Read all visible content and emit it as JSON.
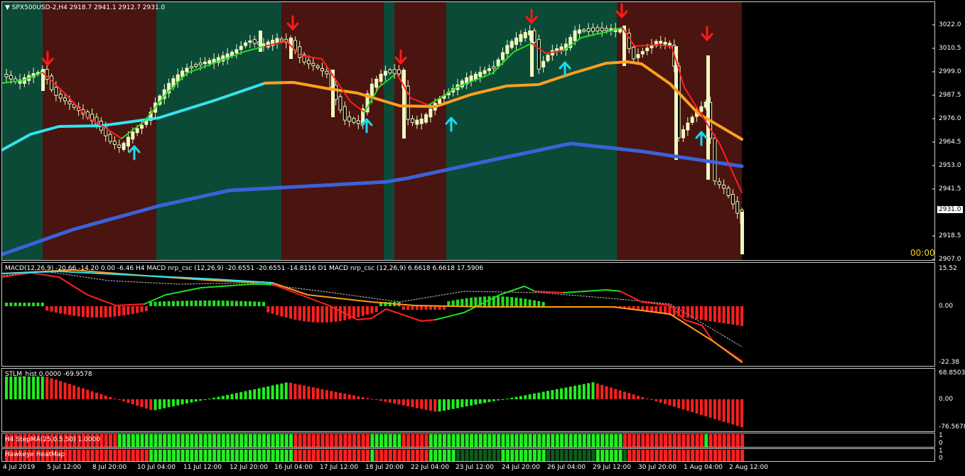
{
  "chart_header": {
    "symbol": "SPX500USD-2,H4",
    "ohlc": "2918.7 2941.1 2912.7 2931.0"
  },
  "main_scale": [
    "3022.0",
    "3010.5",
    "2999.0",
    "2987.5",
    "2976.0",
    "2964.5",
    "2953.0",
    "2941.5",
    "2918.5",
    "2907.0"
  ],
  "current_price": "2931.0",
  "countdown": "00:00",
  "macd": {
    "label": "MACD(12,26,9) -20.66 -14.20 0.00 -6.46  H4 MACD nrp_csc (12,26,9) -20.6551 -20.6551 -14.8116  D1 MACD nrp_csc (12,26,9) 6.6618 6.6618 17.5906",
    "scale": [
      "15.52",
      "0.00",
      "-22.38"
    ]
  },
  "stlm": {
    "label": "STLM_hist 0.0000 -69.9578",
    "scale": [
      "68.8503",
      "0.00",
      "-76.5678"
    ]
  },
  "stepma": {
    "label": "H4 StepMA(25,0.5,50) 1.0000",
    "scale_top": "1",
    "scale_bottom": "0"
  },
  "heatmap": {
    "label": "Hawkeye HeatMap",
    "scale_top": "1",
    "scale_bottom": "0"
  },
  "time_axis": [
    "4 Jul 2019",
    "5 Jul 12:00",
    "8 Jul 20:00",
    "10 Jul 04:00",
    "11 Jul 12:00",
    "12 Jul 20:00",
    "16 Jul 04:00",
    "17 Jul 12:00",
    "18 Jul 20:00",
    "22 Jul 04:00",
    "23 Jul 12:00",
    "24 Jul 20:00",
    "26 Jul 04:00",
    "29 Jul 12:00",
    "30 Jul 20:00",
    "1 Aug 04:00",
    "2 Aug 12:00"
  ],
  "colors": {
    "bg_green": "#0b4a36",
    "bg_red": "#4a1410",
    "bull_candle": "#f0f8c0",
    "fast_ma_up": "#22dd22",
    "fast_ma_down": "#ff2020",
    "mid_ma_up": "#33e3f0",
    "mid_ma_down": "#ffa020",
    "slow_ma": "#3a62d8",
    "arrow_down": "#ff1a1a",
    "arrow_up": "#1ad8f0"
  }
}
